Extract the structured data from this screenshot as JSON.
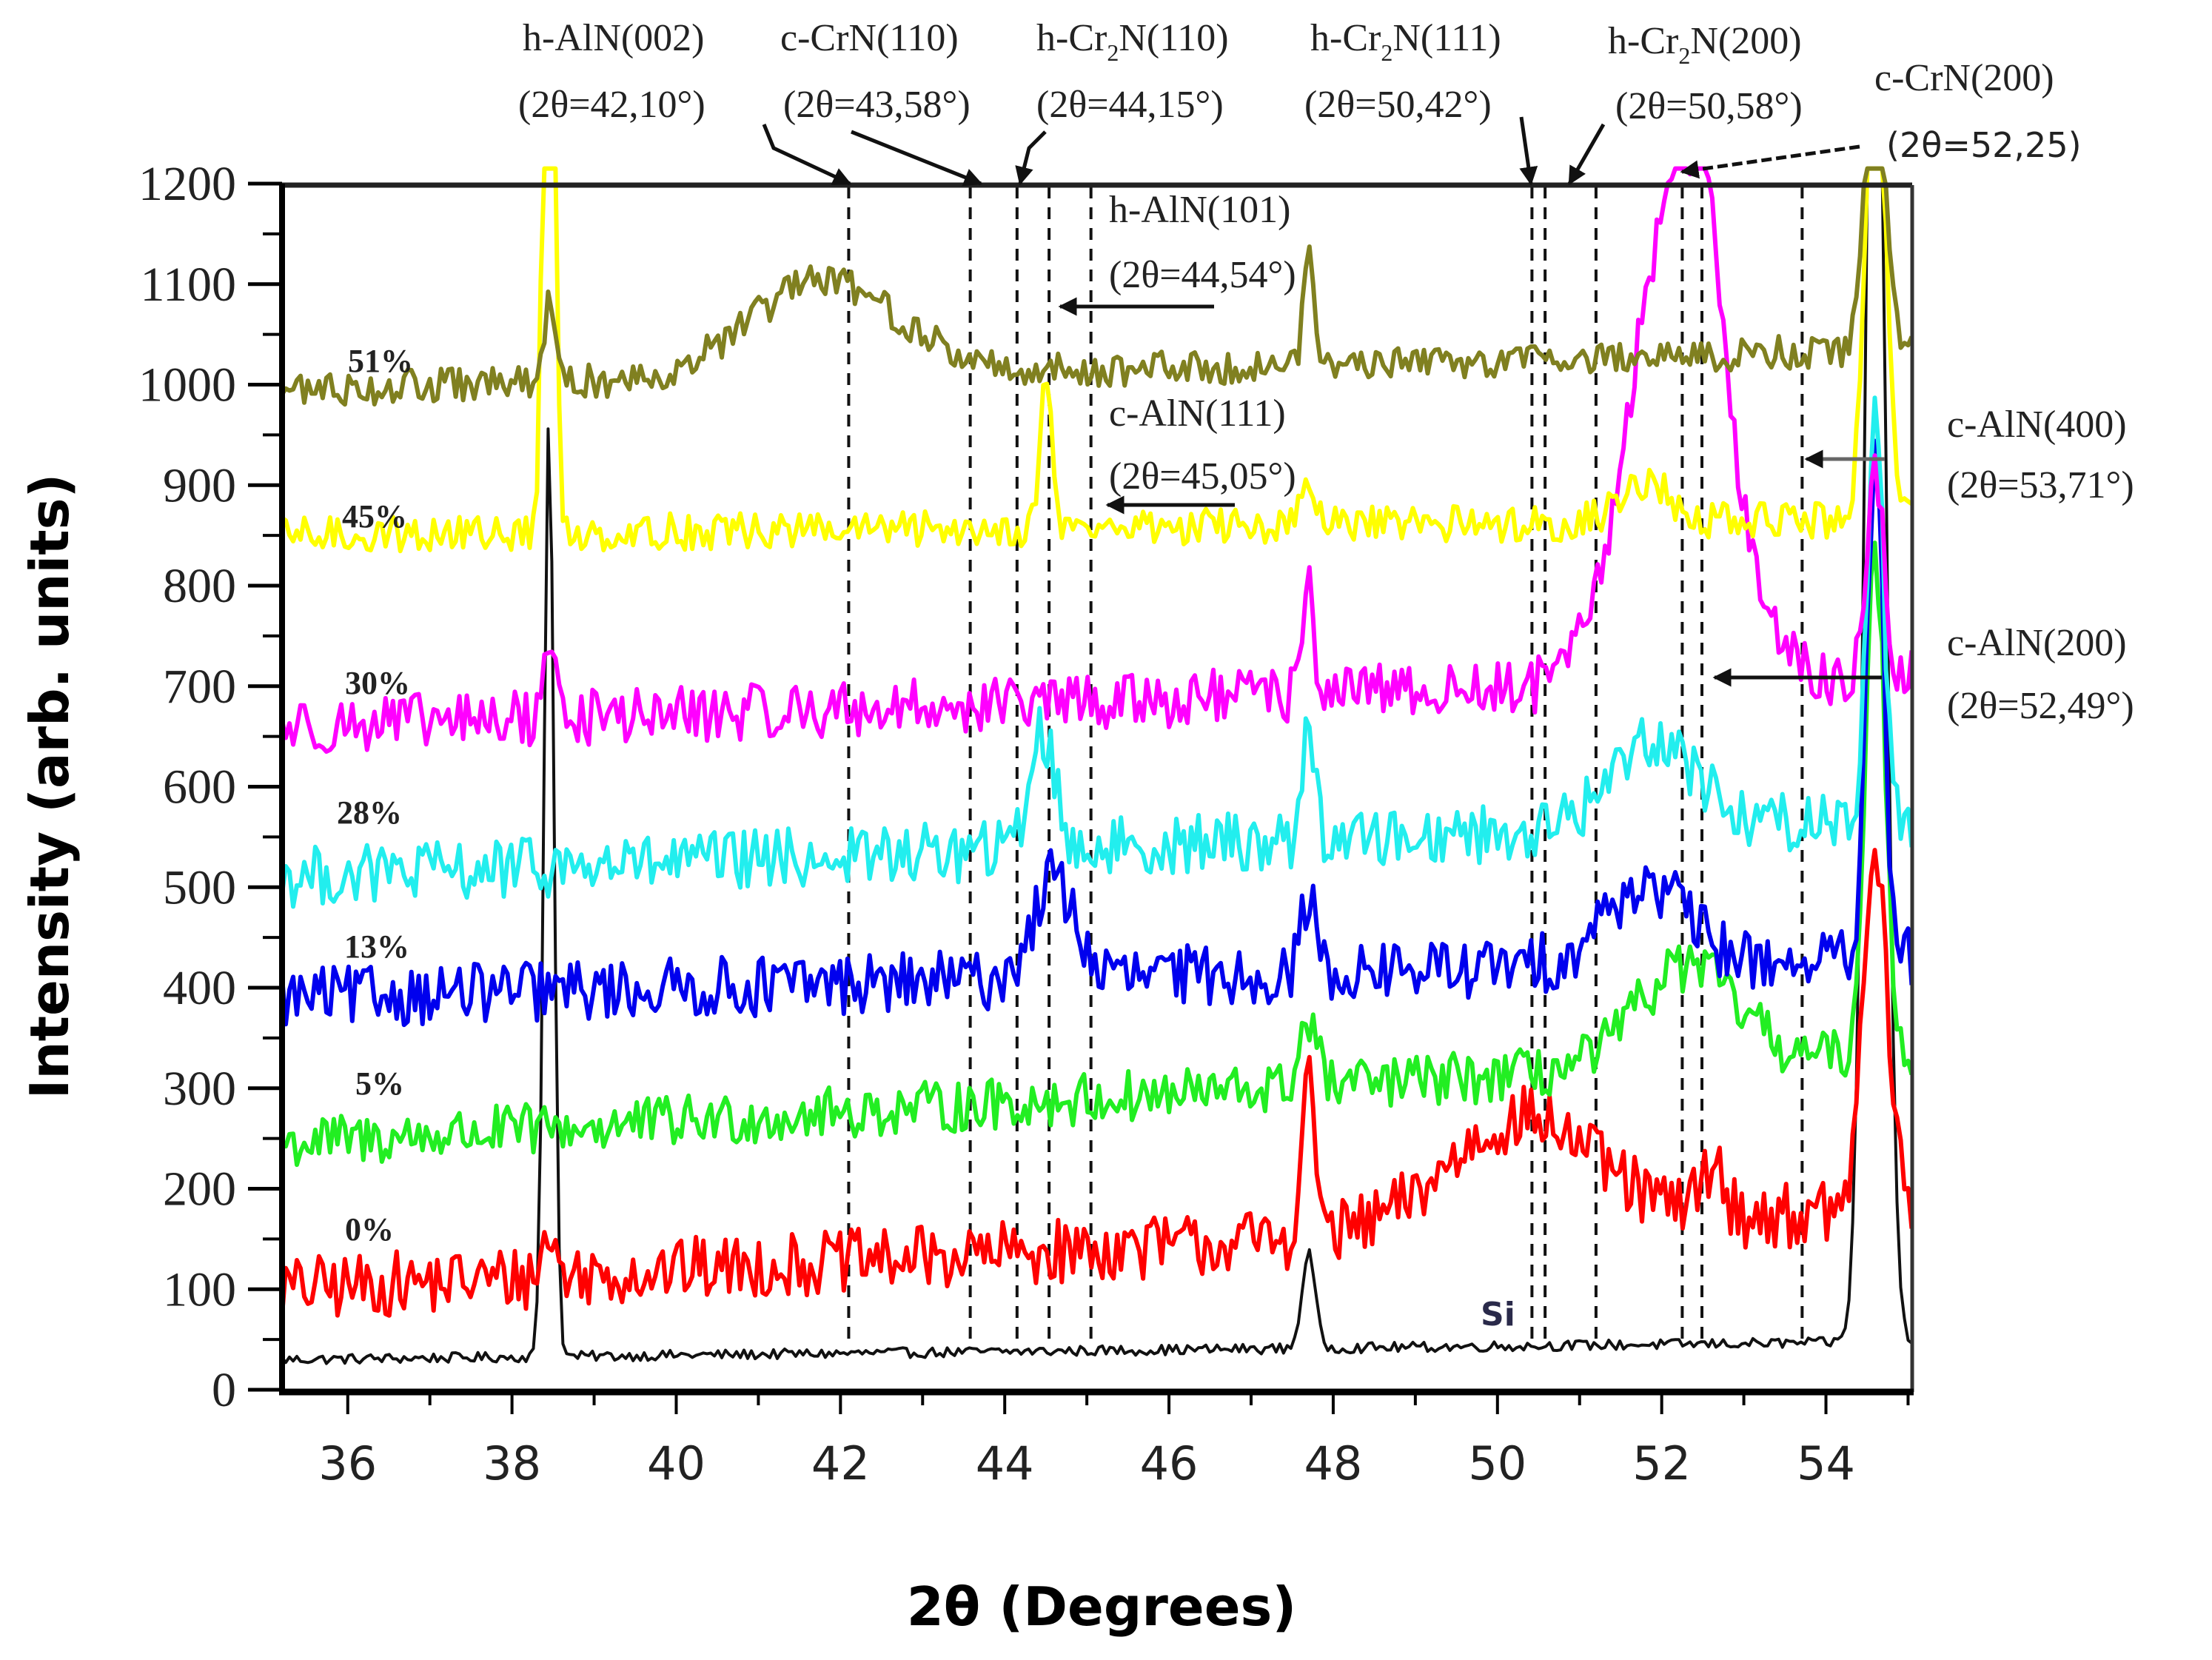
{
  "chart_data": {
    "type": "line",
    "title": "",
    "xlabel": "2θ (Degrees)",
    "ylabel": "Intensity (arb. units)",
    "xlim": [
      35.2,
      55.05
    ],
    "ylim": [
      0,
      1200
    ],
    "grid": false,
    "legend_position": "inline labels at left of each curve",
    "x_ticks": [
      36,
      38,
      40,
      42,
      44,
      46,
      48,
      50,
      52,
      54
    ],
    "y_ticks": [
      0,
      100,
      200,
      300,
      400,
      500,
      600,
      700,
      800,
      900,
      1000,
      1100,
      1200
    ],
    "series": [
      {
        "name": "Si",
        "label": "Si",
        "color": "#111111",
        "baseline": 30,
        "noise": 5,
        "slope": 0.9,
        "peaks": [
          [
            38.45,
            940,
            0.06
          ],
          [
            47.7,
            95,
            0.08
          ],
          [
            54.6,
            1600,
            0.12
          ]
        ]
      },
      {
        "name": "0%",
        "label": "0%",
        "color": "#ff0000",
        "baseline": 100,
        "noise": 32,
        "slope": 4,
        "peaks": [
          [
            38.45,
            40,
            0.08
          ],
          [
            47.7,
            150,
            0.09
          ],
          [
            50.3,
            110,
            0.9
          ],
          [
            52.6,
            50,
            0.15
          ],
          [
            54.6,
            350,
            0.15
          ]
        ]
      },
      {
        "name": "5%",
        "label": "5%",
        "color": "#22ee22",
        "baseline": 245,
        "noise": 26,
        "slope": 4.5,
        "peaks": [
          [
            47.7,
            70,
            0.1
          ],
          [
            52.3,
            100,
            0.6
          ],
          [
            54.6,
            500,
            0.12
          ]
        ]
      },
      {
        "name": "13%",
        "label": "13%",
        "color": "#0000ee",
        "baseline": 390,
        "noise": 30,
        "slope": 2,
        "peaks": [
          [
            44.6,
            100,
            0.25
          ],
          [
            47.7,
            80,
            0.08
          ],
          [
            51.8,
            80,
            0.5
          ],
          [
            54.6,
            500,
            0.1
          ]
        ]
      },
      {
        "name": "28%",
        "label": "28%",
        "color": "#22eeee",
        "baseline": 510,
        "noise": 30,
        "slope": 3,
        "peaks": [
          [
            44.45,
            120,
            0.15
          ],
          [
            47.7,
            130,
            0.07
          ],
          [
            51.9,
            90,
            0.5
          ],
          [
            54.6,
            400,
            0.1
          ]
        ]
      },
      {
        "name": "30%",
        "label": "30%",
        "color": "#ff00ff",
        "baseline": 660,
        "noise": 28,
        "slope": 2.5,
        "peaks": [
          [
            38.45,
            80,
            0.07
          ],
          [
            47.7,
            140,
            0.06
          ],
          [
            52.2,
            500,
            0.55
          ],
          [
            52.55,
            120,
            0.15
          ],
          [
            54.6,
            200,
            0.1
          ]
        ]
      },
      {
        "name": "45%",
        "label": "45%",
        "color": "#ffff00",
        "baseline": 850,
        "noise": 18,
        "slope": 0.8,
        "peaks": [
          [
            38.45,
            1000,
            0.06
          ],
          [
            44.5,
            150,
            0.07
          ],
          [
            47.7,
            40,
            0.08
          ],
          [
            51.8,
            40,
            0.3
          ],
          [
            54.6,
            500,
            0.12
          ]
        ]
      },
      {
        "name": "51%",
        "label": "51%",
        "color": "#808020",
        "baseline": 995,
        "noise": 17,
        "slope": 2,
        "peaks": [
          [
            38.45,
            85,
            0.06
          ],
          [
            41.8,
            95,
            0.9
          ],
          [
            47.7,
            120,
            0.06
          ],
          [
            54.6,
            300,
            0.12
          ]
        ]
      }
    ],
    "reference_lines_2theta": [
      42.1,
      43.58,
      44.15,
      44.54,
      45.05,
      50.42,
      50.58,
      51.2,
      52.25,
      52.49,
      53.71
    ],
    "annotations": [
      {
        "phase": "h-AlN(002)",
        "angle": "(2θ=42,10°)",
        "two_theta": 42.1
      },
      {
        "phase": "c-CrN(110)",
        "angle": "(2θ=43,58°)",
        "two_theta": 43.58
      },
      {
        "phase": "h-Cr2N(110)",
        "angle": "(2θ=44,15°)",
        "two_theta": 44.15
      },
      {
        "phase": "h-AlN(101)",
        "angle": "(2θ=44,54°)",
        "two_theta": 44.54
      },
      {
        "phase": "c-AlN(111)",
        "angle": "(2θ=45,05°)",
        "two_theta": 45.05
      },
      {
        "phase": "h-Cr2N(111)",
        "angle": "(2θ=50,42°)",
        "two_theta": 50.42
      },
      {
        "phase": "h-Cr2N(200)",
        "angle": "(2θ=50,58°)",
        "two_theta": 50.58
      },
      {
        "phase": "c-CrN(200)",
        "angle": "(2θ=52,25)",
        "two_theta": 52.25
      },
      {
        "phase": "c-AlN(200)",
        "angle": "(2θ=52,49°)",
        "two_theta": 52.49
      },
      {
        "phase": "c-AlN(400)",
        "angle": "(2θ=53,71°)",
        "two_theta": 53.71
      }
    ]
  },
  "labels": {
    "xlabel": "2θ (Degrees)",
    "ylabel": "Intensity (arb. units)",
    "si": "Si",
    "s51": "51%",
    "s45": "45%",
    "s30": "30%",
    "s28": "28%",
    "s13": "13%",
    "s5": "5%",
    "s0": "0%",
    "a_h_aln002": "h-AlN(002)",
    "a_h_aln002_t": "(2θ=42,10°)",
    "a_c_crn110": "c-CrN(110)",
    "a_c_crn110_t": "(2θ=43,58°)",
    "a_h_cr2n110_pre": "h-Cr",
    "a_h_cr2n110_post": "N(110)",
    "a_h_cr2n110_t": "(2θ=44,15°)",
    "a_h_cr2n111_pre": "h-Cr",
    "a_h_cr2n111_post": "N(111)",
    "a_h_cr2n111_t": "(2θ=50,42°)",
    "a_h_cr2n200_pre": "h-Cr",
    "a_h_cr2n200_post": "N(200)",
    "a_h_cr2n200_t": "(2θ=50,58°)",
    "a_c_crn200": "c-CrN(200)",
    "a_c_crn200_t": "(2θ=52,25)",
    "a_h_aln101": "h-AlN(101)",
    "a_h_aln101_t": "(2θ=44,54°)",
    "a_c_aln111": "c-AlN(111)",
    "a_c_aln111_t": "(2θ=45,05°)",
    "a_c_aln400": "c-AlN(400)",
    "a_c_aln400_t": "(2θ=53,71°)",
    "a_c_aln200": "c-AlN(200)",
    "a_c_aln200_t": "(2θ=52,49°)",
    "sub2": "2"
  }
}
